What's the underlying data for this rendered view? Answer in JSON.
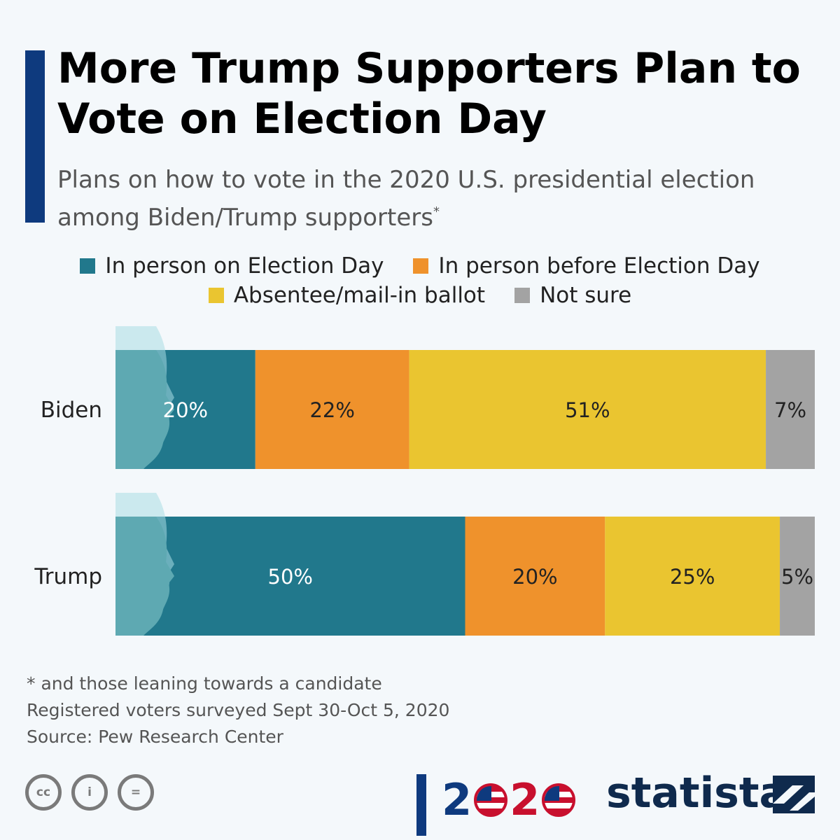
{
  "header": {
    "title": "More Trump Supporters Plan to Vote on Election Day",
    "subtitle": "Plans on how to vote in the 2020 U.S. presidential election among Biden/Trump supporters",
    "subtitle_mark": "*"
  },
  "legend": [
    {
      "label": "In person on Election Day",
      "color": "#21788c"
    },
    {
      "label": "In person before Election Day",
      "color": "#ef922c"
    },
    {
      "label": "Absentee/mail-in ballot",
      "color": "#eac530"
    },
    {
      "label": "Not sure",
      "color": "#a3a3a3"
    }
  ],
  "chart_data": {
    "type": "bar",
    "orientation": "horizontal",
    "stacked": true,
    "categories": [
      "Biden",
      "Trump"
    ],
    "series": [
      {
        "name": "In person on Election Day",
        "values": [
          20,
          50
        ],
        "labels": [
          "20%",
          "50%"
        ],
        "color": "#21788c",
        "label_color": "#ffffff"
      },
      {
        "name": "In person before Election Day",
        "values": [
          22,
          20
        ],
        "labels": [
          "22%",
          "20%"
        ],
        "color": "#ef922c",
        "label_color": "#222222"
      },
      {
        "name": "Absentee/mail-in ballot",
        "values": [
          51,
          25
        ],
        "labels": [
          "51%",
          "25%"
        ],
        "color": "#eac530",
        "label_color": "#222222"
      },
      {
        "name": "Not sure",
        "values": [
          7,
          5
        ],
        "labels": [
          "7%",
          "5%"
        ],
        "color": "#a3a3a3",
        "label_color": "#222222"
      }
    ],
    "xlim": [
      0,
      100
    ],
    "unit": "%",
    "grid": false,
    "legend_position": "top-center"
  },
  "footnotes": {
    "note": "* and those leaning towards a candidate",
    "survey": "Registered voters surveyed Sept 30-Oct 5, 2020",
    "source": "Source: Pew Research Center"
  },
  "footer": {
    "license_badges": [
      "cc",
      "i",
      "="
    ],
    "election_digits": [
      "2",
      "2"
    ],
    "brand": "statista",
    "colors": {
      "navy": "#0e3a7e",
      "red": "#c8102e"
    }
  }
}
